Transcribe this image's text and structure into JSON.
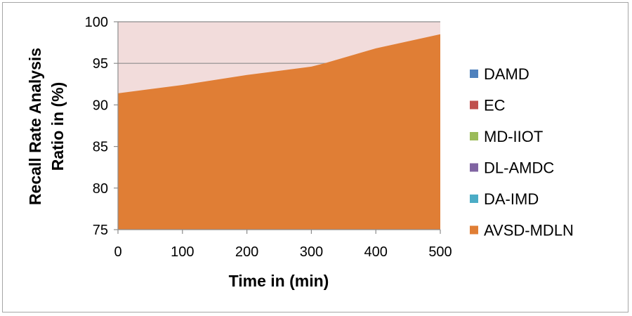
{
  "chart_data": {
    "type": "area",
    "xlabel": "Time in (min)",
    "ylabel": "Recall Rate Analysis Ratio in (%)",
    "ylabel_lines": [
      "Recall Rate Analysis",
      "Ratio in (%)"
    ],
    "xlim": [
      0,
      500
    ],
    "ylim": [
      75,
      100
    ],
    "x_ticks": [
      0,
      100,
      200,
      300,
      400,
      500
    ],
    "y_ticks": [
      75,
      80,
      85,
      90,
      95,
      100
    ],
    "grid": "horizontal",
    "legend_position": "right",
    "stacked_total_fill_color": "#f2dcdb",
    "series": [
      {
        "name": "DAMD",
        "color": "#4f81bd",
        "x": [
          0,
          100,
          200,
          300,
          400,
          500
        ],
        "values": [
          null,
          null,
          null,
          null,
          null,
          null
        ]
      },
      {
        "name": "EC",
        "color": "#c0504d",
        "x": [
          0,
          100,
          200,
          300,
          400,
          500
        ],
        "values": [
          null,
          null,
          null,
          null,
          null,
          null
        ]
      },
      {
        "name": "MD-IIOT",
        "color": "#9bbb59",
        "x": [
          0,
          100,
          200,
          300,
          400,
          500
        ],
        "values": [
          null,
          null,
          null,
          null,
          null,
          null
        ]
      },
      {
        "name": "DL-AMDC",
        "color": "#8064a2",
        "x": [
          0,
          100,
          200,
          300,
          400,
          500
        ],
        "values": [
          null,
          null,
          null,
          null,
          null,
          null
        ]
      },
      {
        "name": "DA-IMD",
        "color": "#4bacc6",
        "x": [
          0,
          100,
          200,
          300,
          400,
          500
        ],
        "values": [
          null,
          null,
          null,
          null,
          null,
          null
        ]
      },
      {
        "name": "AVSD-MDLN",
        "color": "#e07e35",
        "x": [
          0,
          100,
          200,
          300,
          320,
          400,
          500
        ],
        "values": [
          91.4,
          92.4,
          93.6,
          94.6,
          95.0,
          96.8,
          98.5
        ]
      }
    ]
  }
}
